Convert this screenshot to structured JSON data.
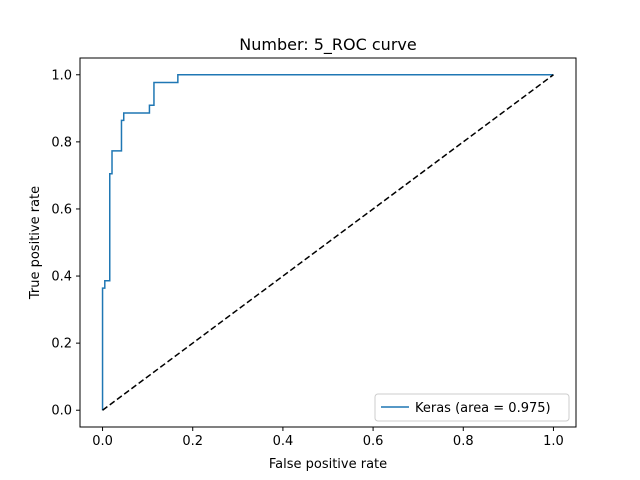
{
  "chart_data": {
    "type": "line",
    "title": "Number:  5_ROC curve",
    "xlabel": "False positive rate",
    "ylabel": "True positive rate",
    "xlim": [
      -0.05,
      1.05
    ],
    "ylim": [
      -0.05,
      1.05
    ],
    "xticks": [
      0.0,
      0.2,
      0.4,
      0.6,
      0.8,
      1.0
    ],
    "yticks": [
      0.0,
      0.2,
      0.4,
      0.6,
      0.8,
      1.0
    ],
    "xtick_labels": [
      "0.0",
      "0.2",
      "0.4",
      "0.6",
      "0.8",
      "1.0"
    ],
    "ytick_labels": [
      "0.0",
      "0.2",
      "0.4",
      "0.6",
      "0.8",
      "1.0"
    ],
    "grid": false,
    "legend_position": "lower-right",
    "series": [
      {
        "name": "Keras (area = 0.975)",
        "color": "#1f77b4",
        "style": "solid",
        "x": [
          0.0,
          0.0,
          0.005,
          0.005,
          0.016,
          0.016,
          0.021,
          0.021,
          0.042,
          0.042,
          0.047,
          0.047,
          0.104,
          0.104,
          0.114,
          0.114,
          0.167,
          0.167,
          1.0
        ],
        "y": [
          0.0,
          0.364,
          0.364,
          0.386,
          0.386,
          0.705,
          0.705,
          0.773,
          0.773,
          0.864,
          0.864,
          0.886,
          0.886,
          0.909,
          0.909,
          0.977,
          0.977,
          1.0,
          1.0
        ]
      },
      {
        "color": "#000000",
        "style": "dashed",
        "x": [
          0.0,
          1.0
        ],
        "y": [
          0.0,
          1.0
        ]
      }
    ]
  }
}
